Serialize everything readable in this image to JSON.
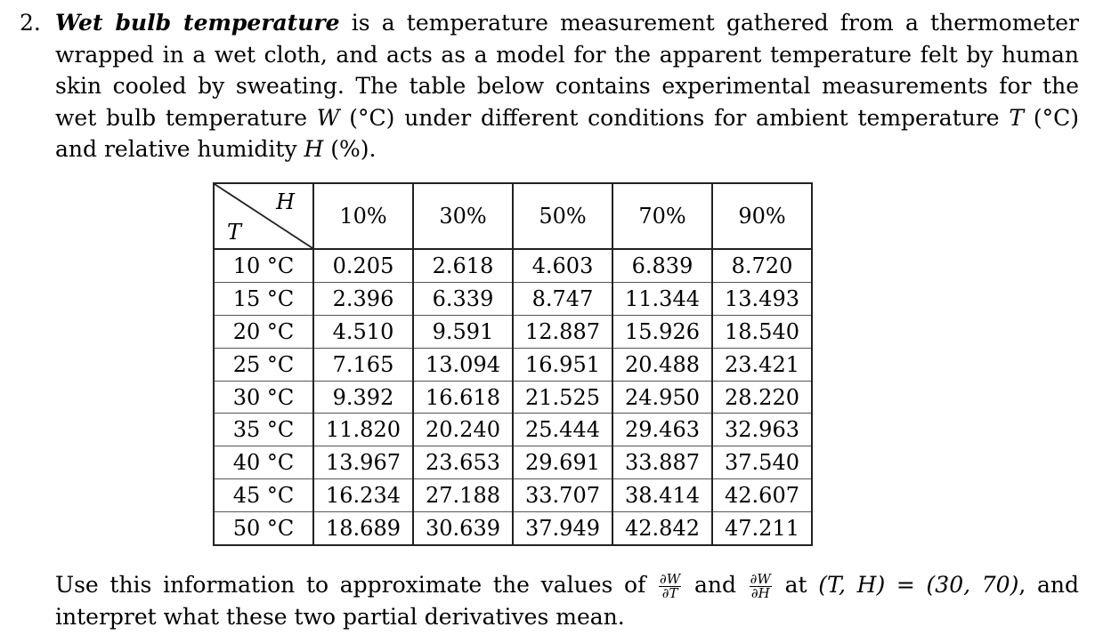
{
  "problem": {
    "number": "2.",
    "term": "Wet bulb temperature",
    "intro_rest_1": " is a temperature measurement gathered from a thermometer wrapped in a wet cloth, and acts as a model for the apparent temperature felt by human skin cooled by sweating.  The table below contains experimental measurements for the wet bulb temperature ",
    "var_w": "W",
    "intro_rest_2": " (°C) under different conditions for ambient temperature ",
    "var_t": "T",
    "intro_rest_3": " (°C) and relative humidity ",
    "var_h": "H",
    "intro_rest_4": " (%)."
  },
  "table": {
    "corner_col_label": "H",
    "corner_row_label": "T",
    "columns": [
      "10%",
      "30%",
      "50%",
      "70%",
      "90%"
    ],
    "rows": [
      {
        "label": "10 °C",
        "values": [
          "0.205",
          "2.618",
          "4.603",
          "6.839",
          "8.720"
        ]
      },
      {
        "label": "15 °C",
        "values": [
          "2.396",
          "6.339",
          "8.747",
          "11.344",
          "13.493"
        ]
      },
      {
        "label": "20 °C",
        "values": [
          "4.510",
          "9.591",
          "12.887",
          "15.926",
          "18.540"
        ]
      },
      {
        "label": "25 °C",
        "values": [
          "7.165",
          "13.094",
          "16.951",
          "20.488",
          "23.421"
        ]
      },
      {
        "label": "30 °C",
        "values": [
          "9.392",
          "16.618",
          "21.525",
          "24.950",
          "28.220"
        ]
      },
      {
        "label": "35 °C",
        "values": [
          "11.820",
          "20.240",
          "25.444",
          "29.463",
          "32.963"
        ]
      },
      {
        "label": "40 °C",
        "values": [
          "13.967",
          "23.653",
          "29.691",
          "33.887",
          "37.540"
        ]
      },
      {
        "label": "45 °C",
        "values": [
          "16.234",
          "27.188",
          "33.707",
          "38.414",
          "42.607"
        ]
      },
      {
        "label": "50 °C",
        "values": [
          "18.689",
          "30.639",
          "37.949",
          "42.842",
          "47.211"
        ]
      }
    ]
  },
  "question": {
    "part1": "Use this information to approximate the values of ",
    "deriv1_num": "∂W",
    "deriv1_den": "∂T",
    "part2": " and ",
    "deriv2_num": "∂W",
    "deriv2_den": "∂H",
    "part3": " at ",
    "point": "(T, H) = (30, 70)",
    "part4": ", and interpret what these two partial derivatives mean."
  }
}
